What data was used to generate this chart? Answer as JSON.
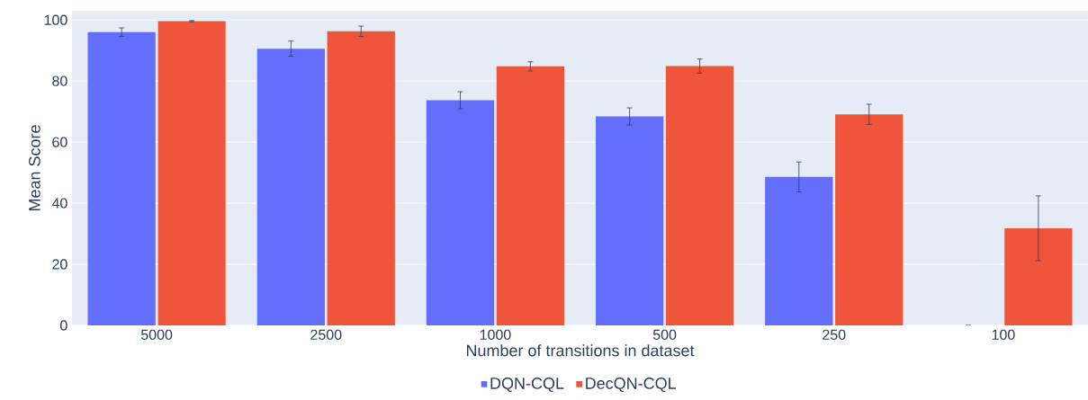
{
  "chart_data": {
    "type": "bar",
    "xlabel": "Number of transitions in dataset",
    "ylabel": "Mean Score",
    "categories": [
      "5000",
      "2500",
      "1000",
      "500",
      "250",
      "100"
    ],
    "series": [
      {
        "name": "DQN-CQL",
        "color": "#636efa",
        "values": [
          96.0,
          90.6,
          73.7,
          68.4,
          48.6,
          0
        ],
        "errors": [
          1.4,
          2.5,
          2.8,
          2.8,
          4.9,
          0
        ]
      },
      {
        "name": "DecQN-CQL",
        "color": "#ef553b",
        "values": [
          99.6,
          96.3,
          84.8,
          84.9,
          69.1,
          31.8
        ],
        "errors": [
          0.2,
          1.7,
          1.5,
          2.3,
          3.3,
          10.6
        ]
      }
    ],
    "ylim": [
      0,
      103
    ],
    "yticks": [
      0,
      20,
      40,
      60,
      80,
      100
    ],
    "grid": "y",
    "legend": "bottom"
  }
}
